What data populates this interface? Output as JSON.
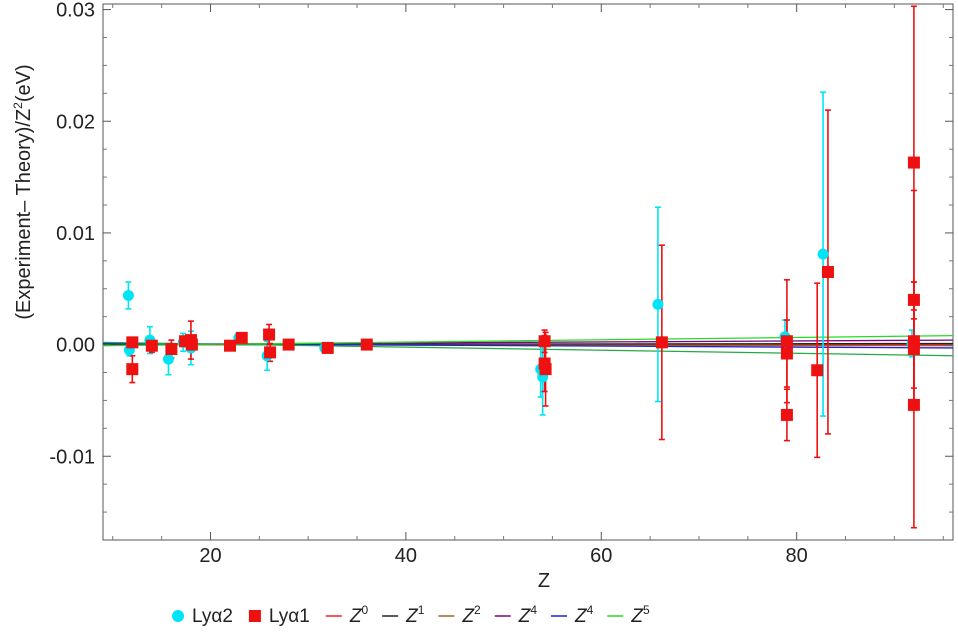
{
  "chart_data": {
    "type": "scatter",
    "xlabel": "Z",
    "ylabel_main": "(Experiment– Theory)/Z",
    "ylabel_sup": "2",
    "ylabel_unit": "(eV)",
    "xlim": [
      9,
      96
    ],
    "ylim": [
      -0.0175,
      0.0305
    ],
    "x_ticks": [
      20,
      40,
      60,
      80
    ],
    "x_tick_labels": [
      "20",
      "40",
      "60",
      "80"
    ],
    "y_ticks": [
      -0.01,
      0.0,
      0.01,
      0.02,
      0.03
    ],
    "y_tick_labels": [
      "-0.01",
      "0.00",
      "0.01",
      "0.02",
      "0.03"
    ],
    "grid": false,
    "legend_position": "bottom",
    "series": [
      {
        "name": "Lyα2",
        "marker": "circle",
        "color": "#00e5f5",
        "points": [
          {
            "x": 11.6,
            "y": 0.0044,
            "err": 0.0012
          },
          {
            "x": 11.7,
            "y": -0.0005,
            "err": 0.0005
          },
          {
            "x": 13.8,
            "y": 0.0004,
            "err": 0.0012
          },
          {
            "x": 15.7,
            "y": -0.0013,
            "err": 0.0014
          },
          {
            "x": 17.2,
            "y": 0.0002,
            "err": 0.0008
          },
          {
            "x": 18.0,
            "y": -0.0003,
            "err": 0.0015
          },
          {
            "x": 22.9,
            "y": 0.0006,
            "err": 0.0003
          },
          {
            "x": 25.8,
            "y": -0.001,
            "err": 0.0013
          },
          {
            "x": 31.7,
            "y": -0.0003,
            "err": 0.0002
          },
          {
            "x": 53.8,
            "y": -0.0022,
            "err": 0.0025
          },
          {
            "x": 54.0,
            "y": -0.0029,
            "err": 0.0034
          },
          {
            "x": 65.8,
            "y": 0.0036,
            "err": 0.0087
          },
          {
            "x": 78.8,
            "y": 0.0007,
            "err": 0.0015
          },
          {
            "x": 82.7,
            "y": 0.0081,
            "err": 0.0145
          },
          {
            "x": 91.8,
            "y": 0.0001,
            "err": 0.0012
          }
        ]
      },
      {
        "name": "Lyα1",
        "marker": "square",
        "color": "#ee1111",
        "points": [
          {
            "x": 12.0,
            "y": 0.0002,
            "err": 0.0003
          },
          {
            "x": 12.0,
            "y": -0.0022,
            "err": 0.0012
          },
          {
            "x": 14.0,
            "y": -0.0001,
            "err": 0.0006
          },
          {
            "x": 16.0,
            "y": -0.0004,
            "err": 0.0008
          },
          {
            "x": 17.4,
            "y": 0.0003,
            "err": 0.0004
          },
          {
            "x": 18.0,
            "y": 0.0004,
            "err": 0.0017
          },
          {
            "x": 18.1,
            "y": 0.0,
            "err": 0.0005
          },
          {
            "x": 22.0,
            "y": -0.0001,
            "err": 0.0003
          },
          {
            "x": 23.2,
            "y": 0.0006,
            "err": 0.0002
          },
          {
            "x": 26.0,
            "y": 0.0009,
            "err": 0.0009
          },
          {
            "x": 26.1,
            "y": -0.0007,
            "err": 0.0008
          },
          {
            "x": 28.0,
            "y": 0.0,
            "err": 0.0002
          },
          {
            "x": 32.0,
            "y": -0.0003,
            "err": 0.0002
          },
          {
            "x": 36.0,
            "y": 0.0,
            "err": 0.0002
          },
          {
            "x": 54.2,
            "y": 0.0003,
            "err": 0.001
          },
          {
            "x": 54.2,
            "y": -0.0017,
            "err": 0.0025
          },
          {
            "x": 54.3,
            "y": -0.0022,
            "err": 0.0033
          },
          {
            "x": 66.2,
            "y": 0.0002,
            "err": 0.0087
          },
          {
            "x": 79.0,
            "y": 0.0003,
            "err": 0.0055
          },
          {
            "x": 79.0,
            "y": -0.0008,
            "err": 0.003
          },
          {
            "x": 79.0,
            "y": -0.0063,
            "err": 0.0023
          },
          {
            "x": 82.1,
            "y": -0.0023,
            "err": 0.0078
          },
          {
            "x": 83.2,
            "y": 0.0065,
            "err": 0.0145
          },
          {
            "x": 92.0,
            "y": 0.0163,
            "err": 0.014
          },
          {
            "x": 92.0,
            "y": 0.004,
            "err": 0.0098
          },
          {
            "x": 92.0,
            "y": 0.0003,
            "err": 0.0053
          },
          {
            "x": 92.0,
            "y": -0.0004,
            "err": 0.0035
          },
          {
            "x": 92.0,
            "y": -0.0054,
            "err": 0.011
          }
        ]
      }
    ],
    "fits": [
      {
        "label": "Z",
        "sup": "0",
        "color": "#ee2222",
        "y_at_xmin": 0.0,
        "y_at_xmax": 0.0
      },
      {
        "label": "Z",
        "sup": "1",
        "color": "#222222",
        "y_at_xmin": 0.0,
        "y_at_xmax": 0.0001
      },
      {
        "label": "Z",
        "sup": "2",
        "color": "#a0652a",
        "y_at_xmin": 0.0,
        "y_at_xmax": -0.0001
      },
      {
        "label": "Z",
        "sup": "4",
        "color": "#800080",
        "y_at_xmin": 0.0,
        "y_at_xmax": 0.0004
      },
      {
        "label": "Z",
        "sup": "4",
        "color": "#2222cc",
        "y_at_xmin": 0.0001,
        "y_at_xmax": -0.0003
      },
      {
        "label": "Z",
        "sup": "5",
        "color": "#22dd22",
        "y_at_xmin": -0.0001,
        "y_at_xmax": 0.0008
      },
      {
        "label": "",
        "sup": "",
        "color": "#22aa44",
        "y_at_xmin": 0.0002,
        "y_at_xmax": -0.001
      }
    ]
  }
}
